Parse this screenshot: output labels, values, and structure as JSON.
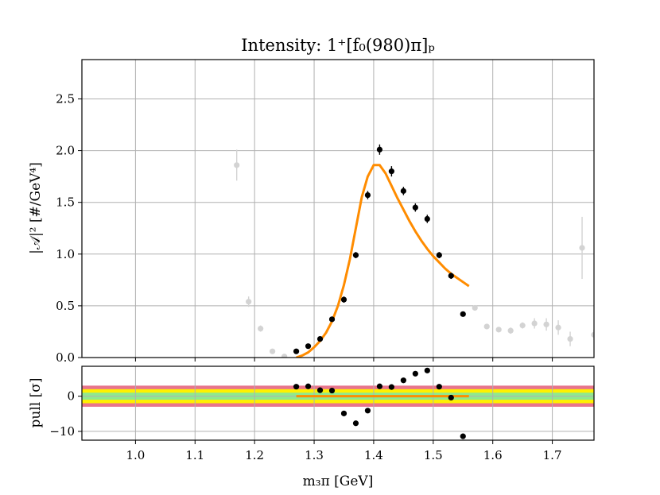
{
  "chart_data": [
    {
      "type": "scatter",
      "title": "Intensity: 1⁺[f₀(980)π]ₚ",
      "xlabel": "m₃π [GeV]",
      "ylabel": "|𝒜|² [#/GeV⁴]",
      "xlim": [
        0.91,
        1.77
      ],
      "ylim": [
        0,
        2.88
      ],
      "grid": true,
      "x_ticks": [
        1.0,
        1.1,
        1.2,
        1.3,
        1.4,
        1.5,
        1.6,
        1.7
      ],
      "x_tick_labels": [
        "1.0",
        "1.1",
        "1.2",
        "1.3",
        "1.4",
        "1.5",
        "1.6",
        "1.7"
      ],
      "y_ticks": [
        0.0,
        0.5,
        1.0,
        1.5,
        2.0,
        2.5
      ],
      "y_tick_labels": [
        "0.0",
        "0.5",
        "1.0",
        "1.5",
        "2.0",
        "2.5"
      ],
      "colors": {
        "fit": "#ff8c00",
        "points_in_range": "#000000",
        "points_out_of_range": "#d3d3d3",
        "grid": "#b0b0b0"
      },
      "series": [
        {
          "role": "data_outside_fit_range",
          "points": [
            {
              "x": 1.17,
              "y": 1.86,
              "err": 0.15
            },
            {
              "x": 1.19,
              "y": 0.54,
              "err": 0.05
            },
            {
              "x": 1.21,
              "y": 0.28,
              "err": 0.03
            },
            {
              "x": 1.23,
              "y": 0.06,
              "err": 0.02
            },
            {
              "x": 1.25,
              "y": 0.01,
              "err": 0.01
            },
            {
              "x": 1.57,
              "y": 0.48,
              "err": 0.02
            },
            {
              "x": 1.59,
              "y": 0.3,
              "err": 0.02
            },
            {
              "x": 1.61,
              "y": 0.27,
              "err": 0.02
            },
            {
              "x": 1.63,
              "y": 0.26,
              "err": 0.03
            },
            {
              "x": 1.65,
              "y": 0.31,
              "err": 0.03
            },
            {
              "x": 1.67,
              "y": 0.33,
              "err": 0.05
            },
            {
              "x": 1.69,
              "y": 0.32,
              "err": 0.06
            },
            {
              "x": 1.71,
              "y": 0.29,
              "err": 0.07
            },
            {
              "x": 1.73,
              "y": 0.18,
              "err": 0.07
            },
            {
              "x": 1.75,
              "y": 1.06,
              "err": 0.3
            },
            {
              "x": 1.77,
              "y": 0.22,
              "err": 0.05
            }
          ]
        },
        {
          "role": "data_in_fit_range",
          "points": [
            {
              "x": 1.27,
              "y": 0.06,
              "err": 0.01
            },
            {
              "x": 1.29,
              "y": 0.11,
              "err": 0.02
            },
            {
              "x": 1.31,
              "y": 0.18,
              "err": 0.02
            },
            {
              "x": 1.33,
              "y": 0.37,
              "err": 0.02
            },
            {
              "x": 1.35,
              "y": 0.56,
              "err": 0.03
            },
            {
              "x": 1.37,
              "y": 0.99,
              "err": 0.03
            },
            {
              "x": 1.39,
              "y": 1.57,
              "err": 0.04
            },
            {
              "x": 1.41,
              "y": 2.01,
              "err": 0.05
            },
            {
              "x": 1.43,
              "y": 1.8,
              "err": 0.05
            },
            {
              "x": 1.45,
              "y": 1.61,
              "err": 0.04
            },
            {
              "x": 1.47,
              "y": 1.45,
              "err": 0.04
            },
            {
              "x": 1.49,
              "y": 1.34,
              "err": 0.04
            },
            {
              "x": 1.51,
              "y": 0.99,
              "err": 0.03
            },
            {
              "x": 1.53,
              "y": 0.79,
              "err": 0.03
            },
            {
              "x": 1.55,
              "y": 0.42,
              "err": 0.02
            }
          ]
        },
        {
          "role": "fit",
          "line": [
            [
              1.27,
              0.0
            ],
            [
              1.28,
              0.02
            ],
            [
              1.29,
              0.05
            ],
            [
              1.3,
              0.1
            ],
            [
              1.31,
              0.16
            ],
            [
              1.32,
              0.24
            ],
            [
              1.33,
              0.35
            ],
            [
              1.34,
              0.5
            ],
            [
              1.35,
              0.7
            ],
            [
              1.36,
              0.95
            ],
            [
              1.37,
              1.25
            ],
            [
              1.38,
              1.55
            ],
            [
              1.39,
              1.75
            ],
            [
              1.4,
              1.86
            ],
            [
              1.41,
              1.86
            ],
            [
              1.42,
              1.78
            ],
            [
              1.43,
              1.66
            ],
            [
              1.44,
              1.54
            ],
            [
              1.45,
              1.43
            ],
            [
              1.46,
              1.32
            ],
            [
              1.47,
              1.22
            ],
            [
              1.48,
              1.13
            ],
            [
              1.49,
              1.05
            ],
            [
              1.5,
              0.98
            ],
            [
              1.51,
              0.92
            ],
            [
              1.52,
              0.86
            ],
            [
              1.53,
              0.81
            ],
            [
              1.54,
              0.77
            ],
            [
              1.55,
              0.73
            ],
            [
              1.56,
              0.69
            ]
          ]
        }
      ]
    },
    {
      "type": "scatter",
      "xlabel": "m₃π [GeV]",
      "ylabel": "pull [σ]",
      "xlim": [
        0.91,
        1.77
      ],
      "ylim": [
        -12.5,
        8.5
      ],
      "grid": true,
      "x_ticks": [
        1.0,
        1.1,
        1.2,
        1.3,
        1.4,
        1.5,
        1.6,
        1.7
      ],
      "x_tick_labels": [
        "1.0",
        "1.1",
        "1.2",
        "1.3",
        "1.4",
        "1.5",
        "1.6",
        "1.7"
      ],
      "y_ticks": [
        -10,
        0
      ],
      "y_tick_labels": [
        "−10",
        "0"
      ],
      "bands": [
        {
          "from": -3,
          "to": 3,
          "color": "#e8748c"
        },
        {
          "from": -2,
          "to": 2,
          "color": "#fff000"
        },
        {
          "from": -1,
          "to": 1,
          "color": "#8fe88f"
        }
      ],
      "fit_line": {
        "x_from": 1.27,
        "x_to": 1.56,
        "y": 0,
        "color": "#ff8c00"
      },
      "points": [
        {
          "x": 1.27,
          "y": 2.7
        },
        {
          "x": 1.29,
          "y": 2.8
        },
        {
          "x": 1.31,
          "y": 1.7
        },
        {
          "x": 1.33,
          "y": 1.6
        },
        {
          "x": 1.35,
          "y": -4.9
        },
        {
          "x": 1.37,
          "y": -7.7
        },
        {
          "x": 1.39,
          "y": -4.1
        },
        {
          "x": 1.41,
          "y": 2.8
        },
        {
          "x": 1.43,
          "y": 2.6
        },
        {
          "x": 1.45,
          "y": 4.5
        },
        {
          "x": 1.47,
          "y": 6.4
        },
        {
          "x": 1.49,
          "y": 7.3
        },
        {
          "x": 1.51,
          "y": 2.7
        },
        {
          "x": 1.53,
          "y": -0.4
        },
        {
          "x": 1.55,
          "y": -11.4
        }
      ]
    }
  ]
}
